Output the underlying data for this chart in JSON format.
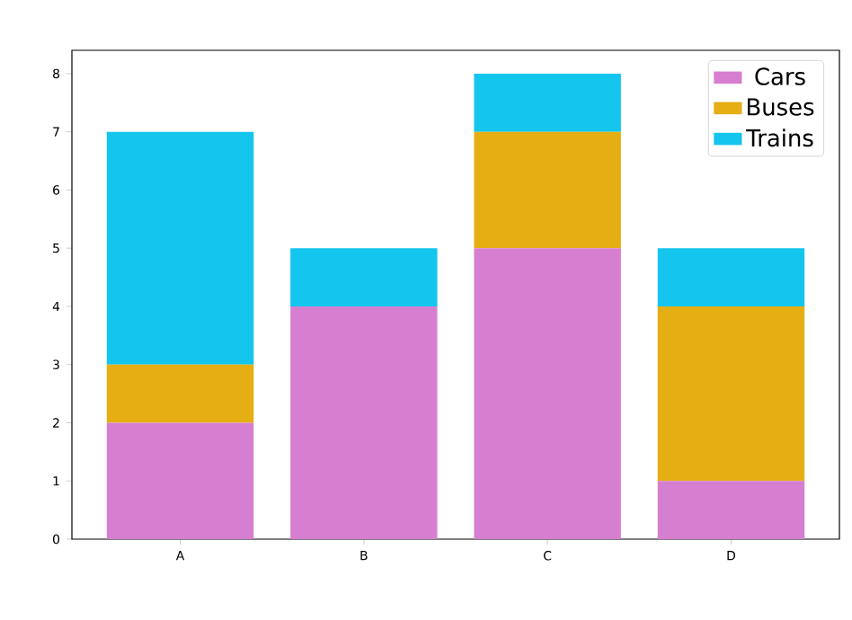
{
  "chart_data": {
    "type": "bar",
    "stacked": true,
    "categories": [
      "A",
      "B",
      "C",
      "D"
    ],
    "series": [
      {
        "name": "Cars",
        "color": "#d67fd0",
        "values": [
          2,
          4,
          5,
          1
        ]
      },
      {
        "name": "Buses",
        "color": "#e5ae13",
        "values": [
          1,
          0,
          2,
          3
        ]
      },
      {
        "name": "Trains",
        "color": "#14c5ee",
        "values": [
          4,
          1,
          1,
          1
        ]
      }
    ],
    "ylim": [
      0,
      8.4
    ],
    "yticks": [
      0,
      1,
      2,
      3,
      4,
      5,
      6,
      7,
      8
    ],
    "legend": "top right"
  }
}
